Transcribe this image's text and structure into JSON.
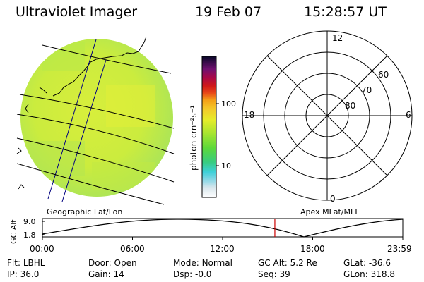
{
  "header": {
    "instrument": "Ultraviolet Imager",
    "date": "19 Feb 07",
    "time": "15:28:57 UT"
  },
  "colorbar": {
    "label": "photon cm⁻²s⁻¹",
    "ticks": [
      "100",
      "10"
    ]
  },
  "polar": {
    "mlt_labels": [
      "12",
      "18",
      "6",
      "0"
    ],
    "lat_labels": [
      "60",
      "70",
      "80"
    ]
  },
  "panels": {
    "left_caption": "Geographic Lat/Lon",
    "right_caption": "Apex MLat/MLT"
  },
  "altitude": {
    "axis_label": "GC Alt",
    "y_max": "9.0",
    "y_min": "1.8",
    "x_ticks": [
      "00:00",
      "06:00",
      "12:00",
      "18:00",
      "23:59"
    ],
    "current_time_hours": 15.48
  },
  "status": {
    "filter_label": "Flt:",
    "filter_value": "LBHL",
    "ip_label": "IP:",
    "ip_value": "36.0",
    "door_label": "Door:",
    "door_value": "Open",
    "gain_label": "Gain:",
    "gain_value": "14",
    "mode_label": "Mode:",
    "mode_value": "Normal",
    "dsp_label": "Dsp:",
    "dsp_value": "-0.0",
    "gcalt_label": "GC Alt:",
    "gcalt_value": "5.2 Re",
    "seq_label": "Seq:",
    "seq_value": "39",
    "glat_label": "GLat:",
    "glat_value": "-36.6",
    "glon_label": "GLon:",
    "glon_value": "318.8"
  },
  "colors": {
    "map_main": "#d2ee3c",
    "trace": "#000000",
    "marker": "#cc0000"
  }
}
